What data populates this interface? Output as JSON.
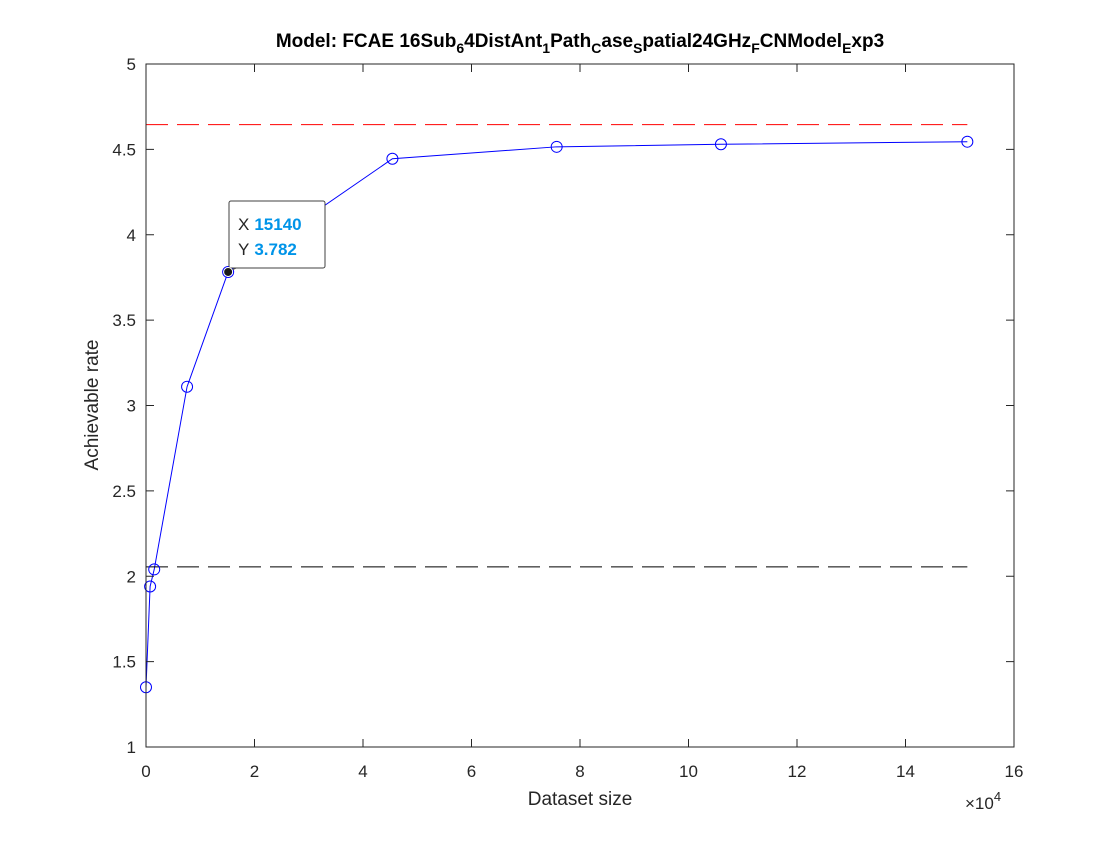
{
  "chart_data": {
    "type": "line",
    "title_parts": [
      {
        "text": "Model: FCAE 16Sub",
        "shift": "base"
      },
      {
        "text": "6",
        "shift": "sub"
      },
      {
        "text": "4DistAnt",
        "shift": "base"
      },
      {
        "text": "1",
        "shift": "sub"
      },
      {
        "text": "Path",
        "shift": "base"
      },
      {
        "text": "C",
        "shift": "sub"
      },
      {
        "text": "ase",
        "shift": "base"
      },
      {
        "text": "S",
        "shift": "sub"
      },
      {
        "text": "patial24GHz",
        "shift": "base"
      },
      {
        "text": "F",
        "shift": "sub"
      },
      {
        "text": "CNModel",
        "shift": "base"
      },
      {
        "text": "E",
        "shift": "sub"
      },
      {
        "text": "xp3",
        "shift": "base"
      }
    ],
    "xlabel": "Dataset size",
    "ylabel": "Achievable rate",
    "x_exponent_base": "×10",
    "x_exponent_power": "4",
    "x_scale": 10000,
    "xlim": [
      0,
      160000
    ],
    "ylim": [
      1,
      5
    ],
    "x_ticks": [
      0,
      20000,
      40000,
      60000,
      80000,
      100000,
      120000,
      140000,
      160000
    ],
    "x_tick_labels": [
      "0",
      "2",
      "4",
      "6",
      "8",
      "10",
      "12",
      "14",
      "16"
    ],
    "y_ticks": [
      1,
      1.5,
      2,
      2.5,
      3,
      3.5,
      4,
      4.5,
      5
    ],
    "y_tick_labels": [
      "1",
      "1.5",
      "2",
      "2.5",
      "3",
      "3.5",
      "4",
      "4.5",
      "5"
    ],
    "grid": false,
    "series": [
      {
        "style": "solid-circle-markers",
        "color": "#0000ff",
        "x": [
          0,
          757,
          1514,
          7570,
          15140,
          45420,
          75700,
          105980,
          151400
        ],
        "y": [
          1.35,
          1.94,
          2.04,
          3.11,
          3.782,
          4.445,
          4.515,
          4.53,
          4.545
        ]
      },
      {
        "style": "dashed",
        "color": "#ff0000",
        "x": [
          0,
          151400
        ],
        "y": [
          4.645,
          4.645
        ]
      },
      {
        "style": "dashed",
        "color": "#000000",
        "x": [
          0,
          151400
        ],
        "y": [
          2.055,
          2.055
        ]
      }
    ],
    "datatip": {
      "x_label": "X",
      "x_value": "15140",
      "y_label": "Y",
      "y_value": "3.782",
      "point_x": 15140,
      "point_y": 3.782,
      "value_color": "#0094e8"
    }
  }
}
